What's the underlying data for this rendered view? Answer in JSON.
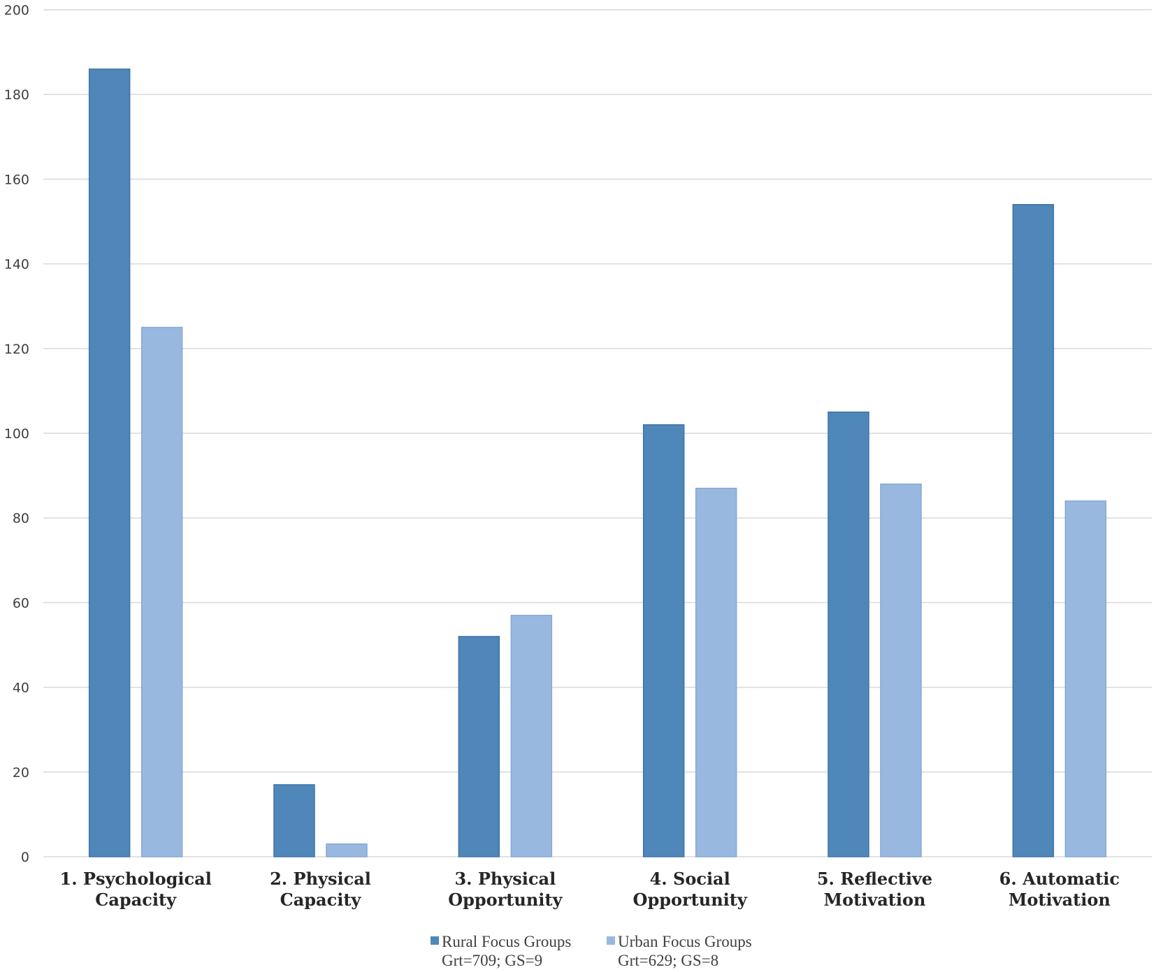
{
  "chart_data": {
    "type": "bar",
    "categories": [
      [
        "1. Psychological",
        "Capacity"
      ],
      [
        "2. Physical",
        "Capacity"
      ],
      [
        "3. Physical",
        "Opportunity"
      ],
      [
        "4. Social",
        "Opportunity"
      ],
      [
        "5. Reflective",
        "Motivation"
      ],
      [
        "6. Automatic",
        "Motivation"
      ]
    ],
    "series": [
      {
        "name": "Rural Focus Groups",
        "sublabel": "Grt=709;  GS=9",
        "color": "#4f87bb",
        "edge": "#3f74a6",
        "values": [
          186,
          17,
          52,
          102,
          105,
          154
        ]
      },
      {
        "name": "Urban Focus Groups",
        "sublabel": "Grt=629;  GS=8",
        "color": "#99b8df",
        "edge": "#86a8d4",
        "values": [
          125,
          3,
          57,
          87,
          88,
          84
        ]
      }
    ],
    "yticks": [
      0,
      20,
      40,
      60,
      80,
      100,
      120,
      140,
      160,
      180,
      200
    ],
    "ylim": [
      0,
      200
    ],
    "title": "",
    "xlabel": "",
    "ylabel": "",
    "grid": true,
    "legend": "bottom-center"
  }
}
